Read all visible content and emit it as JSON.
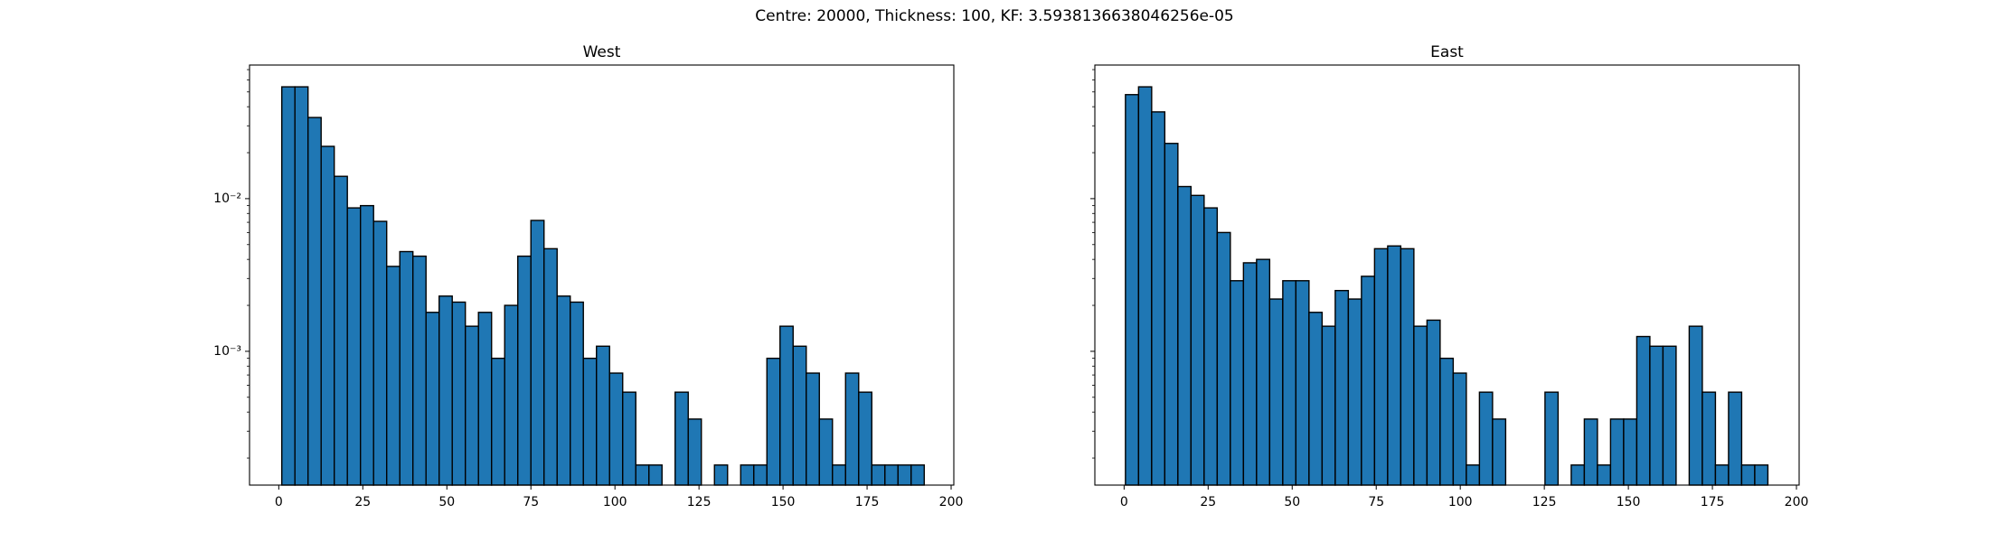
{
  "title": "Centre: 20000, Thickness: 100, KF: 3.5938136638046256e-05",
  "chart_data": [
    {
      "type": "histogram",
      "title": "West",
      "color": "#1f77b4",
      "edgecolor": "#000000",
      "log_y": true,
      "bins": [
        0.9,
        4.8,
        8.7,
        12.6,
        16.5,
        20.4,
        24.3,
        28.2,
        32.1,
        36.0,
        39.9,
        43.8,
        47.7,
        51.6,
        55.5,
        59.4,
        63.3,
        67.2,
        71.1,
        75.0,
        78.9,
        82.8,
        86.7,
        90.6,
        94.5,
        98.4,
        102.3,
        106.2,
        110.1,
        114.0,
        117.9,
        121.8,
        125.7,
        129.6,
        133.5,
        137.4,
        141.3,
        145.2,
        149.1,
        153.0,
        156.9,
        160.8,
        164.7,
        168.6,
        172.5,
        176.4,
        180.3,
        184.2,
        188.1,
        192.0
      ],
      "values": [
        0.054,
        0.054,
        0.034,
        0.022,
        0.014,
        0.0087,
        0.009,
        0.0071,
        0.0036,
        0.0045,
        0.0042,
        0.0018,
        0.0023,
        0.0021,
        0.00146,
        0.0018,
        0.0009,
        0.002,
        0.0042,
        0.0072,
        0.0047,
        0.0023,
        0.0021,
        0.0009,
        0.00108,
        0.00072,
        0.00054,
        0.00018,
        0.00018,
        0,
        0.00054,
        0.00036,
        0,
        0.00018,
        0,
        0.00018,
        0.00018,
        0.0009,
        0.00146,
        0.00108,
        0.00072,
        0.00036,
        0.00018,
        0.00072,
        0.00054,
        0.00018,
        0.00018,
        0.00018,
        0.00018
      ],
      "xlim": [
        -8.7,
        200.8
      ],
      "xticks": [
        0,
        25,
        50,
        75,
        100,
        125,
        150,
        175,
        200
      ],
      "ylim": [
        0.000133,
        0.075
      ],
      "yticks": [
        {
          "value": 0.001,
          "label": "10⁻³"
        },
        {
          "value": 0.01,
          "label": "10⁻²"
        }
      ]
    },
    {
      "type": "histogram",
      "title": "East",
      "color": "#1f77b4",
      "edgecolor": "#000000",
      "log_y": true,
      "sharey": true,
      "bins": [
        0.4,
        4.3,
        8.2,
        12.1,
        16.0,
        19.9,
        23.8,
        27.7,
        31.6,
        35.5,
        39.4,
        43.3,
        47.2,
        51.1,
        55.0,
        58.9,
        62.8,
        66.7,
        70.6,
        74.5,
        78.4,
        82.3,
        86.2,
        90.1,
        94.0,
        97.9,
        101.8,
        105.7,
        109.6,
        113.5,
        117.4,
        121.3,
        125.2,
        129.1,
        133.0,
        136.9,
        140.8,
        144.7,
        148.6,
        152.5,
        156.4,
        160.3,
        164.2,
        168.1,
        172.0,
        175.9,
        179.8,
        183.7,
        187.6,
        191.5
      ],
      "values": [
        0.048,
        0.054,
        0.037,
        0.023,
        0.012,
        0.0105,
        0.0087,
        0.006,
        0.0029,
        0.0038,
        0.004,
        0.0022,
        0.0029,
        0.0029,
        0.0018,
        0.00146,
        0.0025,
        0.0022,
        0.0031,
        0.0047,
        0.0049,
        0.0047,
        0.00146,
        0.0016,
        0.0009,
        0.00072,
        0.00018,
        0.00054,
        0.00036,
        0,
        0,
        0,
        0.00054,
        0,
        0.00018,
        0.00036,
        0.00018,
        0.00036,
        0.00036,
        0.00125,
        0.00108,
        0.00108,
        0,
        0.00146,
        0.00054,
        0.00018,
        0.00054,
        0.00018,
        0.00018
      ],
      "xlim": [
        -8.7,
        200.8
      ],
      "xticks": [
        0,
        25,
        50,
        75,
        100,
        125,
        150,
        175,
        200
      ],
      "ylim": [
        0.000133,
        0.075
      ]
    }
  ]
}
